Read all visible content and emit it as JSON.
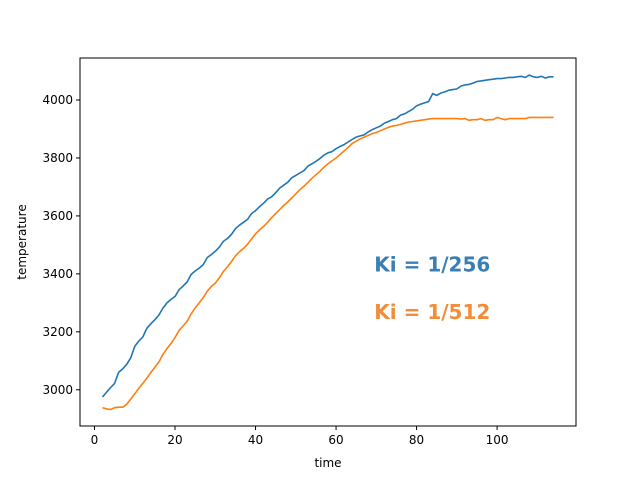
{
  "chart_data": {
    "type": "line",
    "title": "",
    "xlabel": "time",
    "ylabel": "temperature",
    "xlim": [
      -3.6,
      119.6
    ],
    "ylim": [
      2875,
      4145
    ],
    "xticks": [
      0,
      20,
      40,
      60,
      80,
      100
    ],
    "yticks": [
      3000,
      3200,
      3400,
      3600,
      3800,
      4000
    ],
    "grid": false,
    "annotations": [
      {
        "text": "Ki = 1/256",
        "x": 69.5,
        "y": 3433,
        "color": "#3a7fb4"
      },
      {
        "text": "Ki = 1/512",
        "x": 69.5,
        "y": 3268,
        "color": "#f28d3a"
      }
    ],
    "series": [
      {
        "color": "#1f77b4",
        "x": [
          2,
          3,
          4,
          5,
          6,
          7,
          8,
          9,
          10,
          11,
          12,
          13,
          14,
          15,
          16,
          17,
          18,
          19,
          20,
          21,
          22,
          23,
          24,
          25,
          26,
          27,
          28,
          29,
          30,
          31,
          32,
          33,
          34,
          35,
          36,
          37,
          38,
          39,
          40,
          41,
          42,
          43,
          44,
          45,
          46,
          47,
          48,
          49,
          50,
          51,
          52,
          53,
          54,
          55,
          56,
          57,
          58,
          59,
          60,
          61,
          62,
          63,
          64,
          65,
          66,
          67,
          68,
          69,
          70,
          71,
          72,
          73,
          74,
          75,
          76,
          77,
          78,
          79,
          80,
          81,
          82,
          83,
          84,
          85,
          86,
          87,
          88,
          89,
          90,
          91,
          92,
          93,
          94,
          95,
          96,
          97,
          98,
          99,
          100,
          101,
          102,
          103,
          104,
          105,
          106,
          107,
          108,
          109,
          110,
          111,
          112,
          113,
          114
        ],
        "y": [
          2975,
          2992,
          3008,
          3022,
          3060,
          3072,
          3088,
          3110,
          3150,
          3168,
          3182,
          3212,
          3228,
          3242,
          3258,
          3282,
          3300,
          3312,
          3322,
          3345,
          3358,
          3372,
          3398,
          3410,
          3420,
          3432,
          3456,
          3466,
          3478,
          3492,
          3512,
          3522,
          3536,
          3556,
          3568,
          3578,
          3588,
          3608,
          3618,
          3632,
          3644,
          3658,
          3666,
          3680,
          3696,
          3706,
          3716,
          3732,
          3740,
          3748,
          3756,
          3772,
          3780,
          3788,
          3798,
          3810,
          3818,
          3822,
          3832,
          3840,
          3846,
          3855,
          3864,
          3872,
          3876,
          3880,
          3890,
          3898,
          3904,
          3910,
          3920,
          3926,
          3932,
          3936,
          3948,
          3952,
          3960,
          3968,
          3980,
          3986,
          3990,
          3995,
          4022,
          4016,
          4024,
          4028,
          4034,
          4036,
          4038,
          4048,
          4052,
          4054,
          4058,
          4064,
          4066,
          4068,
          4070,
          4072,
          4074,
          4074,
          4076,
          4078,
          4078,
          4080,
          4082,
          4078,
          4086,
          4080,
          4078,
          4082,
          4076,
          4080,
          4080
        ]
      },
      {
        "color": "#ff7f0e",
        "x": [
          2,
          3,
          4,
          5,
          6,
          7,
          8,
          9,
          10,
          11,
          12,
          13,
          14,
          15,
          16,
          17,
          18,
          19,
          20,
          21,
          22,
          23,
          24,
          25,
          26,
          27,
          28,
          29,
          30,
          31,
          32,
          33,
          34,
          35,
          36,
          37,
          38,
          39,
          40,
          41,
          42,
          43,
          44,
          45,
          46,
          47,
          48,
          49,
          50,
          51,
          52,
          53,
          54,
          55,
          56,
          57,
          58,
          59,
          60,
          61,
          62,
          63,
          64,
          65,
          66,
          67,
          68,
          69,
          70,
          71,
          72,
          73,
          74,
          75,
          76,
          77,
          78,
          79,
          80,
          81,
          82,
          83,
          84,
          85,
          86,
          87,
          88,
          89,
          90,
          91,
          92,
          93,
          94,
          95,
          96,
          97,
          98,
          99,
          100,
          101,
          102,
          103,
          104,
          105,
          106,
          107,
          108,
          109,
          110,
          111,
          112,
          113,
          114
        ],
        "y": [
          2938,
          2934,
          2932,
          2938,
          2940,
          2940,
          2950,
          2968,
          2986,
          3005,
          3022,
          3040,
          3060,
          3078,
          3096,
          3122,
          3142,
          3160,
          3180,
          3205,
          3220,
          3236,
          3262,
          3282,
          3300,
          3318,
          3340,
          3356,
          3368,
          3386,
          3408,
          3424,
          3442,
          3462,
          3476,
          3488,
          3502,
          3520,
          3538,
          3552,
          3564,
          3578,
          3594,
          3608,
          3622,
          3636,
          3648,
          3662,
          3676,
          3690,
          3702,
          3716,
          3730,
          3742,
          3754,
          3768,
          3780,
          3790,
          3800,
          3812,
          3824,
          3836,
          3850,
          3858,
          3866,
          3872,
          3878,
          3884,
          3888,
          3894,
          3900,
          3906,
          3910,
          3912,
          3916,
          3920,
          3924,
          3926,
          3928,
          3930,
          3932,
          3934,
          3936,
          3936,
          3936,
          3936,
          3936,
          3936,
          3936,
          3934,
          3936,
          3930,
          3932,
          3932,
          3936,
          3930,
          3932,
          3932,
          3940,
          3936,
          3932,
          3936,
          3936,
          3936,
          3936,
          3936,
          3940,
          3940,
          3940,
          3940,
          3940,
          3940,
          3940
        ]
      }
    ]
  }
}
